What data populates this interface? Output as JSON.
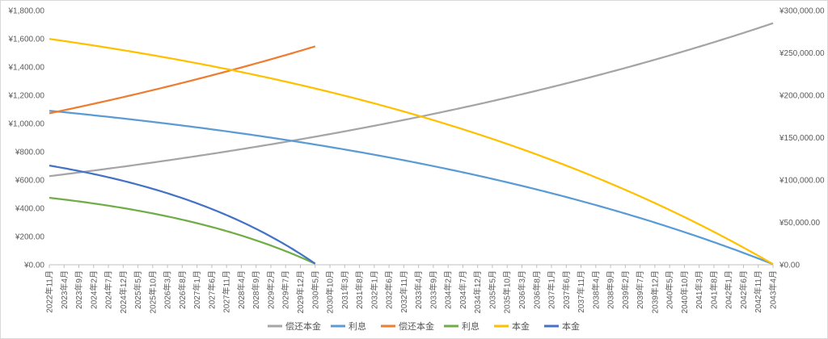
{
  "chart_data": {
    "type": "line",
    "title": "",
    "grid": false,
    "legend_position": "bottom",
    "y_left": {
      "min": 0,
      "max": 1800,
      "step": 200,
      "tick_labels": [
        "¥0.00",
        "¥200.00",
        "¥400.00",
        "¥600.00",
        "¥800.00",
        "¥1,000.00",
        "¥1,200.00",
        "¥1,400.00",
        "¥1,600.00",
        "¥1,800.00"
      ]
    },
    "y_right": {
      "min": 0,
      "max": 300000,
      "step": 50000,
      "tick_labels": [
        "¥0.00",
        "¥50,000.00",
        "¥100,000.00",
        "¥150,000.00",
        "¥200,000.00",
        "¥250,000.00",
        "¥300,000.00"
      ]
    },
    "x": {
      "start": "2022年11月",
      "end": "2043年4月",
      "tick_labels": [
        "2022年11月",
        "2023年4月",
        "2023年9月",
        "2024年2月",
        "2024年7月",
        "2024年12月",
        "2025年5月",
        "2025年10月",
        "2026年3月",
        "2026年8月",
        "2027年1月",
        "2027年6月",
        "2027年11月",
        "2028年4月",
        "2028年9月",
        "2029年2月",
        "2029年7月",
        "2029年12月",
        "2030年5月",
        "2030年10月",
        "2031年3月",
        "2031年8月",
        "2032年1月",
        "2032年6月",
        "2032年11月",
        "2033年4月",
        "2033年9月",
        "2034年2月",
        "2034年7月",
        "2034年12月",
        "2035年5月",
        "2035年10月",
        "2036年3月",
        "2036年8月",
        "2037年1月",
        "2037年6月",
        "2037年11月",
        "2038年4月",
        "2038年9月",
        "2039年2月",
        "2039年7月",
        "2039年12月",
        "2040年5月",
        "2040年10月",
        "2041年3月",
        "2041年8月",
        "2042年1月",
        "2042年6月",
        "2042年11月",
        "2043年4月"
      ]
    },
    "series": [
      {
        "name": "偿还本金",
        "color": "#a5a5a5",
        "axis": "left",
        "start": "2022年11月",
        "end": "2043年4月",
        "start_value": 627,
        "end_value": 1710,
        "curve": "growth"
      },
      {
        "name": "利息",
        "color": "#5b9bd5",
        "axis": "left",
        "start": "2022年11月",
        "end": "2043年4月",
        "start_value": 1090,
        "end_value": 4,
        "curve": "decline"
      },
      {
        "name": "偿还本金",
        "color": "#ed7d31",
        "axis": "left",
        "start": "2022年11月",
        "end": "2030年5月",
        "start_value": 1072,
        "end_value": 1546,
        "curve": "growth"
      },
      {
        "name": "利息",
        "color": "#70ad47",
        "axis": "left",
        "start": "2022年11月",
        "end": "2030年5月",
        "start_value": 474,
        "end_value": 7,
        "curve": "decline"
      },
      {
        "name": "本金",
        "color": "#ffc000",
        "axis": "right",
        "start": "2022年11月",
        "end": "2043年4月",
        "start_value": 266500,
        "end_value": 700,
        "curve": "decline"
      },
      {
        "name": "本金",
        "color": "#4472c4",
        "axis": "right",
        "start": "2022年11月",
        "end": "2030年5月",
        "start_value": 117000,
        "end_value": 1300,
        "curve": "decline"
      }
    ]
  }
}
